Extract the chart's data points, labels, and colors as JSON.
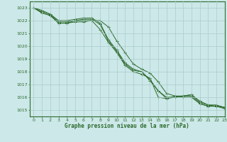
{
  "background_color": "#cce8e8",
  "grid_color": "#aacccc",
  "line_color": "#2d6a2d",
  "xlabel": "Graphe pression niveau de la mer (hPa)",
  "ylim": [
    1014.5,
    1023.5
  ],
  "xlim": [
    -0.5,
    23
  ],
  "yticks": [
    1015,
    1016,
    1017,
    1018,
    1019,
    1020,
    1021,
    1022,
    1023
  ],
  "xticks": [
    0,
    1,
    2,
    3,
    4,
    5,
    6,
    7,
    8,
    9,
    10,
    11,
    12,
    13,
    14,
    15,
    16,
    17,
    18,
    19,
    20,
    21,
    22,
    23
  ],
  "series": [
    [
      1023.0,
      1022.6,
      1022.4,
      1021.8,
      1021.8,
      1021.9,
      1021.9,
      1022.0,
      1021.3,
      1020.3,
      1019.5,
      1018.5,
      1018.0,
      1017.8,
      1017.5,
      1016.0,
      1015.9,
      1016.1,
      1016.0,
      1016.0,
      1015.5,
      1015.3,
      1015.3,
      1015.2
    ],
    [
      1023.0,
      1022.6,
      1022.4,
      1021.8,
      1021.8,
      1022.0,
      1022.0,
      1022.0,
      1022.0,
      1021.5,
      1020.4,
      1019.5,
      1018.6,
      1018.2,
      1017.9,
      1017.2,
      1016.3,
      1016.1,
      1016.1,
      1016.2,
      1015.7,
      1015.4,
      1015.4,
      1015.2
    ],
    [
      1023.0,
      1022.7,
      1022.5,
      1021.9,
      1021.9,
      1022.0,
      1022.1,
      1022.1,
      1021.7,
      1020.4,
      1019.6,
      1018.6,
      1018.1,
      1018.0,
      1017.3,
      1016.5,
      1015.9,
      1016.0,
      1016.1,
      1016.1,
      1015.5,
      1015.3,
      1015.3,
      1015.1
    ],
    [
      1023.0,
      1022.8,
      1022.5,
      1022.0,
      1022.0,
      1022.1,
      1022.2,
      1022.2,
      1021.8,
      1020.5,
      1019.7,
      1018.7,
      1018.2,
      1018.0,
      1017.4,
      1016.5,
      1016.0,
      1016.0,
      1016.1,
      1016.2,
      1015.6,
      1015.4,
      1015.3,
      1015.2
    ]
  ]
}
